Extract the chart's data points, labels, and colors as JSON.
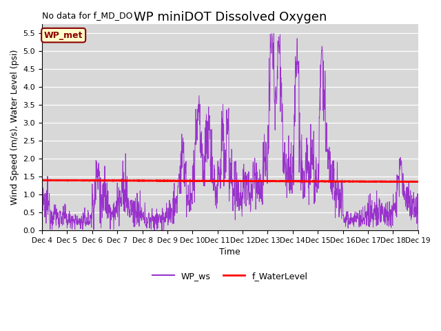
{
  "title": "WP miniDOT Dissolved Oxygen",
  "top_left_text": "No data for f_MD_DO",
  "ylabel": "Wind Speed (m/s), Water Level (psi)",
  "xlabel": "Time",
  "ylim": [
    0.0,
    5.75
  ],
  "yticks": [
    0.0,
    0.5,
    1.0,
    1.5,
    2.0,
    2.5,
    3.0,
    3.5,
    4.0,
    4.5,
    5.0,
    5.5
  ],
  "legend_box_label": "WP_met",
  "legend_box_bg": "#ffffcc",
  "legend_box_edge": "#8B0000",
  "water_level_value": 1.38,
  "line_colors": {
    "WP_ws": "#9932CC",
    "f_WaterLevel": "#FF0000"
  },
  "legend_labels": [
    "WP_ws",
    "f_WaterLevel"
  ],
  "plot_bg_color": "#d8d8d8",
  "title_fontsize": 13,
  "label_fontsize": 9,
  "tick_fontsize": 8,
  "n_points": 1500,
  "start_day": 4,
  "end_day": 19,
  "random_seed": 12345
}
